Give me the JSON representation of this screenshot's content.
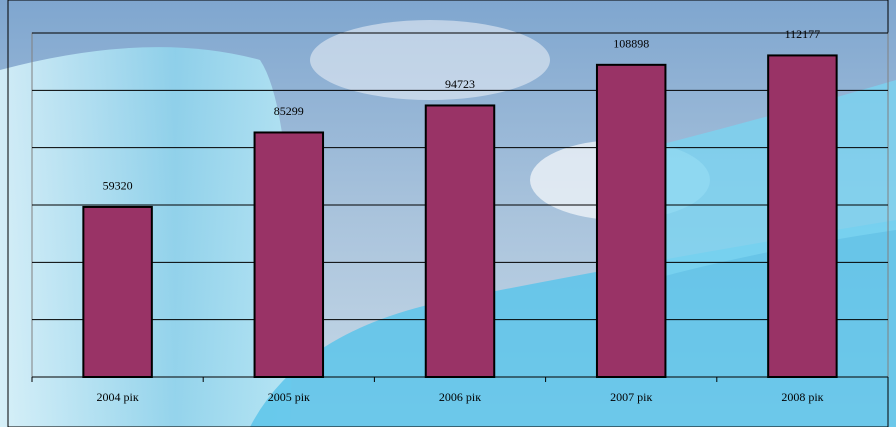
{
  "chart_data": {
    "type": "bar",
    "categories": [
      "2004 рік",
      "2005 рік",
      "2006 рік",
      "2007 рік",
      "2008 рік"
    ],
    "values": [
      59320,
      85299,
      94723,
      108898,
      112177
    ],
    "color": "#993366",
    "ylim": [
      0,
      120000
    ],
    "yticks": [
      0,
      20000,
      40000,
      60000,
      80000,
      100000,
      120000
    ],
    "grid": true
  }
}
